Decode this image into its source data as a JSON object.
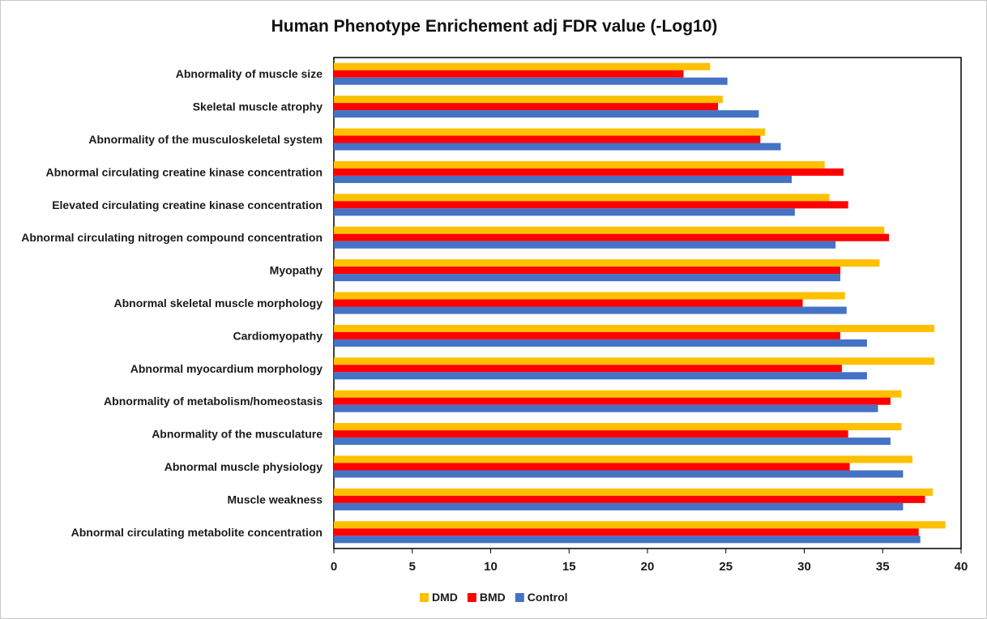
{
  "chart_data": {
    "type": "bar",
    "orientation": "horizontal",
    "title": "Human Phenotype Enrichement adj FDR value (-Log10)",
    "xlabel": "",
    "ylabel": "",
    "xlim": [
      0,
      40
    ],
    "xticks": [
      0,
      5,
      10,
      15,
      20,
      25,
      30,
      35,
      40
    ],
    "grid": false,
    "legend_position": "bottom",
    "categories": [
      "Abnormality of muscle size",
      "Skeletal muscle atrophy",
      "Abnormality of the musculoskeletal system",
      "Abnormal circulating creatine kinase concentration",
      "Elevated circulating creatine kinase concentration",
      "Abnormal circulating nitrogen compound concentration",
      "Myopathy",
      "Abnormal skeletal muscle morphology",
      "Cardiomyopathy",
      "Abnormal myocardium morphology",
      "Abnormality of metabolism/homeostasis",
      "Abnormality of the musculature",
      "Abnormal muscle physiology",
      "Muscle weakness",
      "Abnormal circulating metabolite concentration"
    ],
    "series": [
      {
        "name": "DMD",
        "color": "#FFC000",
        "values": [
          24.0,
          24.8,
          27.5,
          31.3,
          31.6,
          35.1,
          34.8,
          32.6,
          38.3,
          38.3,
          36.2,
          36.2,
          36.9,
          38.2,
          39.0
        ]
      },
      {
        "name": "BMD",
        "color": "#FF0000",
        "values": [
          22.3,
          24.5,
          27.2,
          32.5,
          32.8,
          35.4,
          32.3,
          29.9,
          32.3,
          32.4,
          35.5,
          32.8,
          32.9,
          37.7,
          37.3
        ]
      },
      {
        "name": "Control",
        "color": "#4472C4",
        "values": [
          25.1,
          27.1,
          28.5,
          29.2,
          29.4,
          32.0,
          32.3,
          32.7,
          34.0,
          34.0,
          34.7,
          35.5,
          36.3,
          36.3,
          37.4
        ]
      }
    ]
  }
}
